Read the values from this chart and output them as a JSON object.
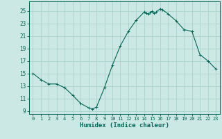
{
  "xlabel": "Humidex (Indice chaleur)",
  "bg_color": "#cce8e4",
  "grid_color": "#aad4cc",
  "line_color": "#006655",
  "marker_color": "#006655",
  "xlim": [
    -0.5,
    23.5
  ],
  "ylim": [
    8.5,
    26.5
  ],
  "yticks": [
    9,
    11,
    13,
    15,
    17,
    19,
    21,
    23,
    25
  ],
  "xticks": [
    0,
    1,
    2,
    3,
    4,
    5,
    6,
    7,
    8,
    9,
    10,
    11,
    12,
    13,
    14,
    15,
    16,
    17,
    18,
    19,
    20,
    21,
    22,
    23
  ],
  "data_x": [
    0,
    1,
    2,
    3,
    4,
    5,
    6,
    7,
    7.5,
    8,
    9,
    10,
    11,
    12,
    13,
    14,
    14.25,
    14.5,
    14.75,
    15,
    15.25,
    15.5,
    16,
    16.25,
    17,
    18,
    19,
    20,
    21,
    22,
    23
  ],
  "data_y": [
    15.0,
    14.0,
    13.3,
    13.3,
    12.7,
    11.5,
    10.2,
    9.5,
    9.3,
    9.6,
    12.7,
    16.3,
    19.4,
    21.7,
    23.5,
    24.8,
    24.6,
    24.5,
    24.7,
    24.9,
    24.6,
    24.8,
    25.3,
    25.2,
    24.5,
    23.4,
    22.0,
    21.7,
    18.0,
    17.0,
    15.7
  ]
}
